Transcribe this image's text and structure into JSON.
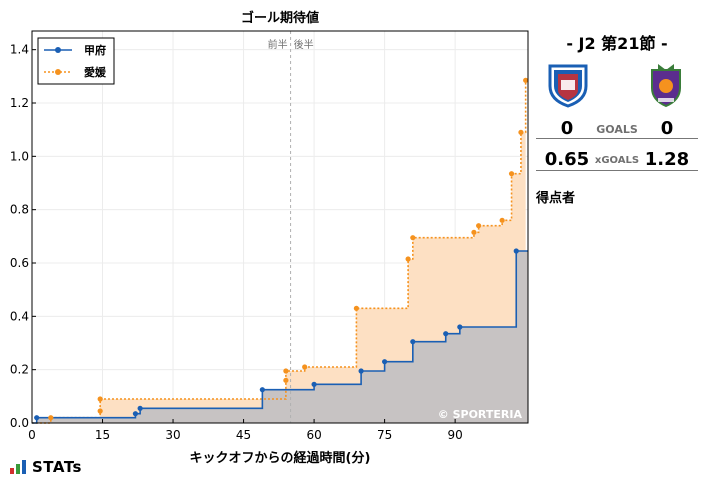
{
  "chart_data": {
    "type": "line",
    "title": "ゴール期待値",
    "xlabel": "キックオフからの経過時間(分)",
    "ylabel": "",
    "xlim": [
      0,
      105.5
    ],
    "ylim": [
      0,
      1.47
    ],
    "xticks": [
      0,
      15,
      30,
      45,
      60,
      75,
      90
    ],
    "yticks": [
      0.0,
      0.2,
      0.4,
      0.6,
      0.8,
      1.0,
      1.2,
      1.4
    ],
    "grid": true,
    "legend_position": "top-left",
    "halftime_marker": {
      "x": 55,
      "first_half_label": "前半",
      "second_half_label": "後半"
    },
    "watermark": "© SPORTERIA",
    "series": [
      {
        "name": "甲府",
        "color": "#1a5fb4",
        "linestyle": "solid",
        "fill": "#c7c3c3",
        "x": [
          0,
          1,
          22,
          23,
          49,
          60,
          70,
          75,
          81,
          88,
          91,
          103,
          105.5
        ],
        "y": [
          0,
          0.02,
          0.035,
          0.055,
          0.125,
          0.145,
          0.195,
          0.23,
          0.305,
          0.335,
          0.36,
          0.645,
          0.645
        ]
      },
      {
        "name": "愛媛",
        "color": "#f5921e",
        "linestyle": "dotted",
        "fill": "#fde0c3",
        "x": [
          0,
          4,
          14.5,
          14.5,
          54,
          54,
          58,
          69,
          80,
          81,
          94,
          95,
          100,
          102,
          104,
          105
        ],
        "y": [
          0,
          0.02,
          0.045,
          0.09,
          0.16,
          0.195,
          0.21,
          0.43,
          0.615,
          0.695,
          0.715,
          0.74,
          0.76,
          0.935,
          1.09,
          1.285
        ]
      }
    ]
  },
  "match": {
    "title": "- J2 第21節 -",
    "home": {
      "score": "0",
      "xg": "0.65",
      "crest_color": "#1a5fb4",
      "crest_icon": "ventforet-kofu-crest-icon"
    },
    "away": {
      "score": "0",
      "xg": "1.28",
      "crest_color": "#5b2d8e",
      "crest_icon": "ehime-fc-crest-icon"
    },
    "goals_label": "GOALS",
    "xgoals_label": "xGOALS",
    "scorers_label": "得点者"
  },
  "brand": {
    "logo_text": "STATs",
    "logo_icon": "stats-bars-icon"
  }
}
